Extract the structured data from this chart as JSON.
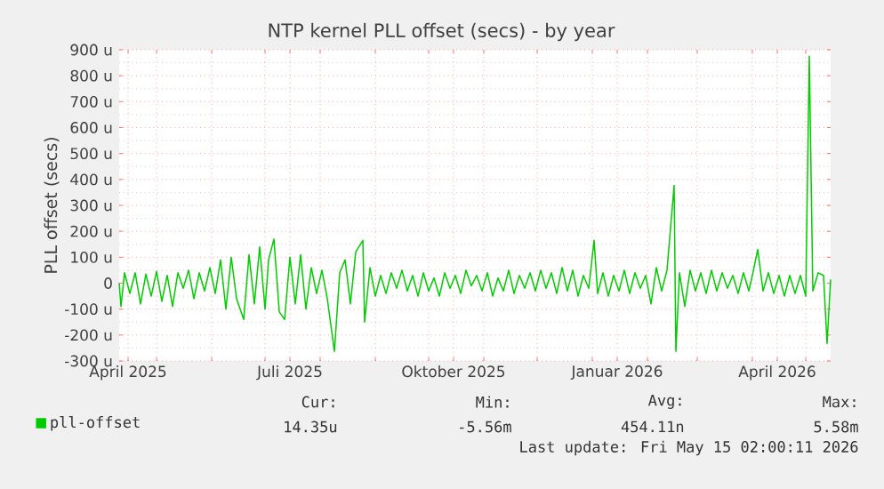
{
  "chart_data": {
    "type": "line",
    "title": "NTP kernel PLL offset (secs) - by year",
    "ylabel": "PLL offset (secs)",
    "xlim": [
      "2025-04-10",
      "2026-05-15"
    ],
    "ylim": [
      -300,
      900
    ],
    "xticks": [
      {
        "value": "2025-04-15",
        "label": "April 2025"
      },
      {
        "value": "2025-07-15",
        "label": "Juli 2025"
      },
      {
        "value": "2025-10-15",
        "label": "Oktober 2025"
      },
      {
        "value": "2026-01-15",
        "label": "Januar 2026"
      },
      {
        "value": "2026-04-15",
        "label": "April 2026"
      },
      {
        "value": "2025-05-01",
        "label": null
      },
      {
        "value": "2025-06-01",
        "label": null
      },
      {
        "value": "2025-07-01",
        "label": null
      },
      {
        "value": "2025-08-01",
        "label": null
      },
      {
        "value": "2025-09-01",
        "label": null
      },
      {
        "value": "2025-10-01",
        "label": null
      },
      {
        "value": "2025-11-01",
        "label": null
      },
      {
        "value": "2025-12-01",
        "label": null
      },
      {
        "value": "2026-01-01",
        "label": null
      },
      {
        "value": "2026-02-01",
        "label": null
      },
      {
        "value": "2026-03-01",
        "label": null
      },
      {
        "value": "2026-04-01",
        "label": null
      },
      {
        "value": "2026-05-01",
        "label": null
      }
    ],
    "yticks": [
      {
        "value": -300,
        "label": "-300 u"
      },
      {
        "value": -200,
        "label": "-200 u"
      },
      {
        "value": -100,
        "label": "-100 u"
      },
      0,
      {
        "value": 100,
        "label": "100 u"
      },
      {
        "value": 200,
        "label": "200 u"
      },
      {
        "value": 300,
        "label": "300 u"
      },
      {
        "value": 400,
        "label": "400 u"
      },
      {
        "value": 500,
        "label": "500 u"
      },
      {
        "value": 600,
        "label": "600 u"
      },
      {
        "value": 700,
        "label": "700 u"
      },
      {
        "value": 800,
        "label": "800 u"
      },
      {
        "value": 900,
        "label": "900 u"
      }
    ],
    "grid": true,
    "legend": "bottom",
    "marker": "none",
    "line_style": "solid",
    "series": [
      {
        "name": "pll-offset",
        "color": "#00cc00",
        "x": [
          "2025-04-10",
          "2025-04-11",
          "2025-04-13",
          "2025-04-16",
          "2025-04-19",
          "2025-04-22",
          "2025-04-25",
          "2025-04-28",
          "2025-05-01",
          "2025-05-04",
          "2025-05-07",
          "2025-05-10",
          "2025-05-13",
          "2025-05-16",
          "2025-05-19",
          "2025-05-22",
          "2025-05-25",
          "2025-05-28",
          "2025-05-31",
          "2025-06-03",
          "2025-06-06",
          "2025-06-09",
          "2025-06-12",
          "2025-06-15",
          "2025-06-19",
          "2025-06-22",
          "2025-06-25",
          "2025-06-28",
          "2025-07-01",
          "2025-07-03",
          "2025-07-06",
          "2025-07-09",
          "2025-07-12",
          "2025-07-15",
          "2025-07-18",
          "2025-07-21",
          "2025-07-24",
          "2025-07-27",
          "2025-07-30",
          "2025-08-02",
          "2025-08-05",
          "2025-08-09",
          "2025-08-12",
          "2025-08-15",
          "2025-08-18",
          "2025-08-21",
          "2025-08-25",
          "2025-08-26",
          "2025-08-29",
          "2025-09-01",
          "2025-09-04",
          "2025-09-07",
          "2025-09-10",
          "2025-09-13",
          "2025-09-16",
          "2025-09-19",
          "2025-09-22",
          "2025-09-25",
          "2025-09-28",
          "2025-10-01",
          "2025-10-04",
          "2025-10-07",
          "2025-10-10",
          "2025-10-13",
          "2025-10-16",
          "2025-10-19",
          "2025-10-22",
          "2025-10-25",
          "2025-10-28",
          "2025-10-31",
          "2025-11-03",
          "2025-11-06",
          "2025-11-09",
          "2025-11-12",
          "2025-11-15",
          "2025-11-18",
          "2025-11-21",
          "2025-11-24",
          "2025-11-27",
          "2025-11-30",
          "2025-12-03",
          "2025-12-06",
          "2025-12-09",
          "2025-12-12",
          "2025-12-15",
          "2025-12-18",
          "2025-12-21",
          "2025-12-24",
          "2025-12-27",
          "2025-12-30",
          "2026-01-02",
          "2026-01-04",
          "2026-01-07",
          "2026-01-10",
          "2026-01-13",
          "2026-01-16",
          "2026-01-19",
          "2026-01-22",
          "2026-01-25",
          "2026-01-28",
          "2026-01-31",
          "2026-02-03",
          "2026-02-06",
          "2026-02-09",
          "2026-02-12",
          "2026-02-16",
          "2026-02-17",
          "2026-02-19",
          "2026-02-22",
          "2026-02-25",
          "2026-02-28",
          "2026-03-03",
          "2026-03-06",
          "2026-03-09",
          "2026-03-12",
          "2026-03-15",
          "2026-03-18",
          "2026-03-21",
          "2026-03-24",
          "2026-03-27",
          "2026-03-30",
          "2026-04-01",
          "2026-04-04",
          "2026-04-07",
          "2026-04-10",
          "2026-04-13",
          "2026-04-16",
          "2026-04-19",
          "2026-04-22",
          "2026-04-25",
          "2026-04-28",
          "2026-05-01",
          "2026-05-03",
          "2026-05-05",
          "2026-05-08",
          "2026-05-11",
          "2026-05-13",
          "2026-05-15"
        ],
        "values": [
          0,
          -90,
          40,
          -40,
          40,
          -80,
          35,
          -50,
          45,
          -70,
          30,
          -90,
          40,
          -20,
          50,
          -60,
          40,
          -30,
          60,
          -40,
          90,
          -100,
          100,
          -60,
          -140,
          110,
          -80,
          140,
          -100,
          90,
          170,
          -110,
          -140,
          100,
          -80,
          110,
          -100,
          60,
          -40,
          50,
          -60,
          -263,
          40,
          90,
          -80,
          120,
          165,
          -150,
          60,
          -50,
          30,
          -40,
          40,
          -20,
          50,
          -30,
          30,
          -50,
          40,
          -30,
          20,
          -50,
          40,
          -20,
          30,
          -40,
          50,
          -10,
          30,
          -30,
          40,
          -50,
          20,
          -30,
          50,
          -40,
          30,
          -20,
          40,
          -30,
          50,
          -20,
          40,
          -40,
          60,
          -30,
          50,
          -50,
          30,
          -20,
          165,
          -40,
          40,
          -50,
          30,
          -30,
          50,
          -40,
          40,
          -20,
          30,
          -80,
          60,
          -30,
          50,
          377,
          -263,
          40,
          -90,
          50,
          -30,
          40,
          -40,
          50,
          -30,
          40,
          -20,
          30,
          -40,
          40,
          -30,
          30,
          130,
          -30,
          40,
          -40,
          30,
          -50,
          30,
          -40,
          30,
          -50,
          875,
          -30,
          40,
          30,
          -233,
          14
        ]
      }
    ],
    "annotations": [
      "Cur:",
      "Min:",
      "Avg:",
      "Max:",
      "14.35u",
      "-5.56m",
      "454.11n",
      "5.58m",
      "Last update: Fri May 15 02:00:11 2026"
    ]
  }
}
